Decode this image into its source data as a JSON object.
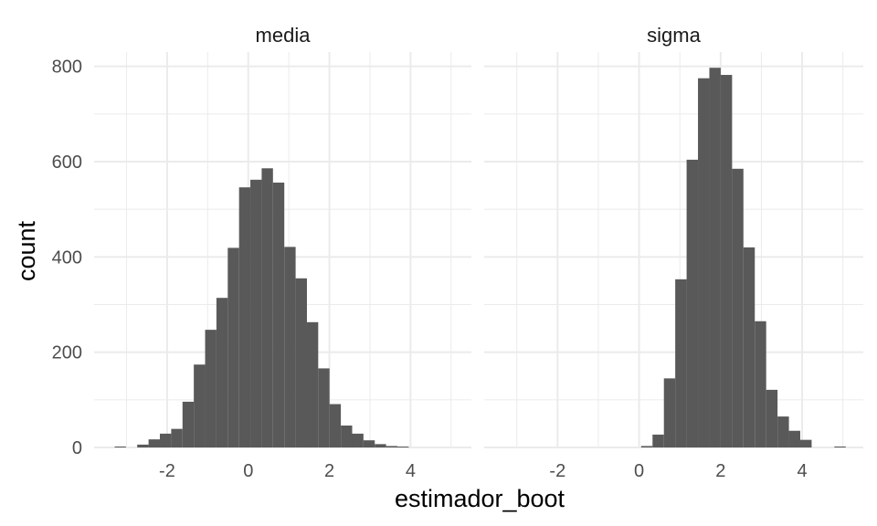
{
  "chart_data": {
    "type": "bar",
    "xlabel": "estimador_boot",
    "ylabel": "count",
    "ylim": [
      0,
      830
    ],
    "xlim": [
      -3.8,
      5.5
    ],
    "x_ticks": [
      -2,
      0,
      2,
      4
    ],
    "y_ticks": [
      0,
      200,
      400,
      600,
      800
    ],
    "grid": true,
    "bin_width": 0.2788,
    "colors": {
      "bar": "#595959",
      "grid": "#ebebeb"
    },
    "panels": [
      {
        "name": "media",
        "bins": [
          {
            "x": -3.154,
            "count": 2
          },
          {
            "x": -2.876,
            "count": 0
          },
          {
            "x": -2.597,
            "count": 6
          },
          {
            "x": -2.318,
            "count": 17
          },
          {
            "x": -2.039,
            "count": 29
          },
          {
            "x": -1.76,
            "count": 39
          },
          {
            "x": -1.481,
            "count": 96
          },
          {
            "x": -1.203,
            "count": 174
          },
          {
            "x": -0.924,
            "count": 247
          },
          {
            "x": -0.645,
            "count": 314
          },
          {
            "x": -0.366,
            "count": 419
          },
          {
            "x": -0.087,
            "count": 546
          },
          {
            "x": 0.191,
            "count": 562
          },
          {
            "x": 0.47,
            "count": 586
          },
          {
            "x": 0.749,
            "count": 556
          },
          {
            "x": 1.028,
            "count": 421
          },
          {
            "x": 1.307,
            "count": 355
          },
          {
            "x": 1.585,
            "count": 263
          },
          {
            "x": 1.864,
            "count": 166
          },
          {
            "x": 2.143,
            "count": 91
          },
          {
            "x": 2.422,
            "count": 46
          },
          {
            "x": 2.7,
            "count": 29
          },
          {
            "x": 2.979,
            "count": 15
          },
          {
            "x": 3.258,
            "count": 7
          },
          {
            "x": 3.537,
            "count": 3
          },
          {
            "x": 3.816,
            "count": 1
          }
        ]
      },
      {
        "name": "sigma",
        "bins": [
          {
            "x": 0.19,
            "count": 3
          },
          {
            "x": 0.469,
            "count": 27
          },
          {
            "x": 0.748,
            "count": 145
          },
          {
            "x": 1.026,
            "count": 353
          },
          {
            "x": 1.305,
            "count": 604
          },
          {
            "x": 1.584,
            "count": 775
          },
          {
            "x": 1.863,
            "count": 797
          },
          {
            "x": 2.142,
            "count": 782
          },
          {
            "x": 2.42,
            "count": 585
          },
          {
            "x": 2.699,
            "count": 420
          },
          {
            "x": 2.978,
            "count": 265
          },
          {
            "x": 3.257,
            "count": 121
          },
          {
            "x": 3.536,
            "count": 65
          },
          {
            "x": 3.814,
            "count": 35
          },
          {
            "x": 4.093,
            "count": 16
          },
          {
            "x": 4.372,
            "count": 0
          },
          {
            "x": 4.651,
            "count": 0
          },
          {
            "x": 4.93,
            "count": 2
          }
        ]
      }
    ]
  }
}
